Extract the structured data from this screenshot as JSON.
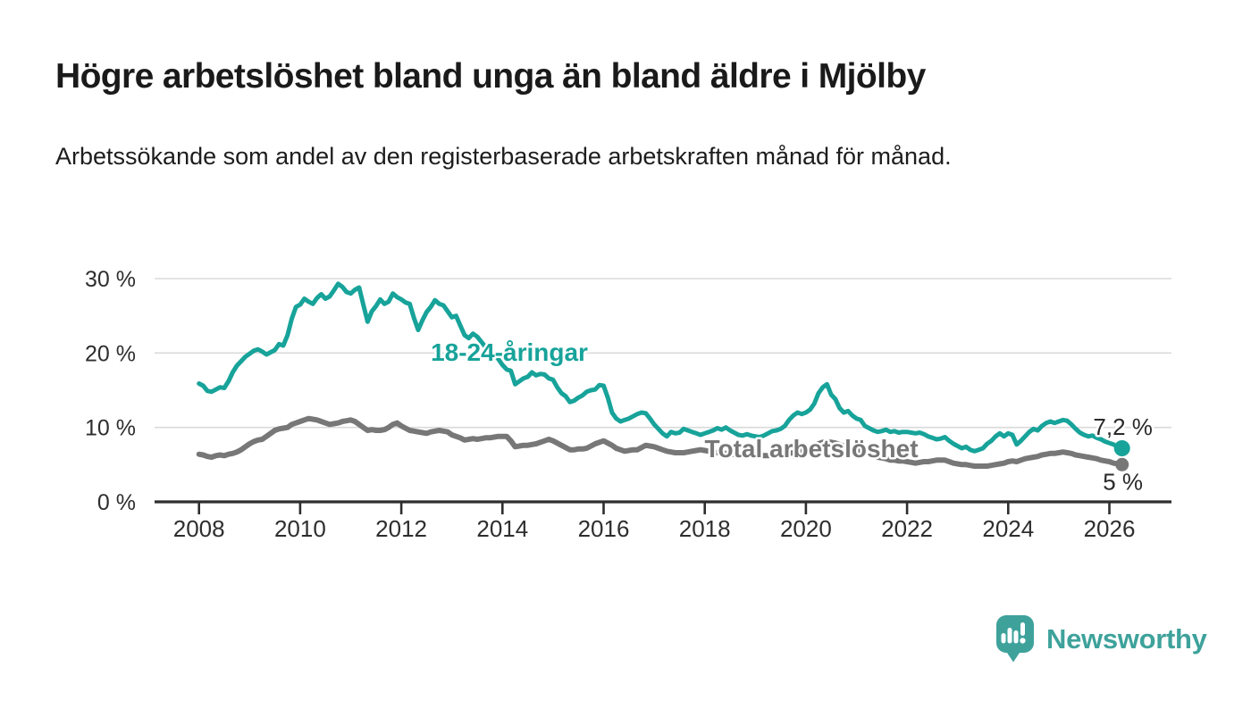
{
  "header": {
    "title": "Högre arbetslöshet bland unga än bland äldre i Mjölby",
    "subtitle": "Arbetssökande som andel av den registerbaserade arbetskraften månad för månad."
  },
  "chart_data": {
    "type": "line",
    "unit": "%",
    "grid": true,
    "start": "2008-01",
    "freq": "monthly",
    "ylim": [
      0,
      30
    ],
    "y_axis": {
      "tick_values": [
        0,
        10,
        20,
        30
      ],
      "tick_labels": [
        "0 %",
        "10 %",
        "20 %",
        "30 %"
      ]
    },
    "x_axis": {
      "tick_years": [
        2008,
        2010,
        2012,
        2014,
        2016,
        2018,
        2020,
        2022,
        2024,
        2026
      ],
      "tick_labels": [
        "2008",
        "2010",
        "2012",
        "2014",
        "2016",
        "2018",
        "2020",
        "2022",
        "2024",
        "2026"
      ]
    },
    "series": [
      {
        "name": "18-24-åringar",
        "color": "#17a39a",
        "line_width": 5,
        "end_label": "7,2 %",
        "end_value": 7.2,
        "values": [
          15.9,
          15.6,
          14.9,
          14.8,
          15.1,
          15.4,
          15.3,
          16.2,
          17.4,
          18.3,
          18.9,
          19.5,
          19.9,
          20.3,
          20.5,
          20.2,
          19.8,
          20.1,
          20.4,
          21.2,
          21.0,
          22.4,
          24.6,
          26.2,
          26.5,
          27.3,
          26.9,
          26.6,
          27.4,
          27.9,
          27.3,
          27.6,
          28.4,
          29.3,
          28.9,
          28.2,
          28.0,
          28.5,
          28.8,
          26.5,
          24.2,
          25.6,
          26.3,
          27.2,
          26.6,
          26.9,
          28.0,
          27.5,
          27.2,
          26.8,
          26.6,
          24.7,
          23.1,
          24.4,
          25.5,
          26.2,
          27.1,
          26.6,
          26.4,
          25.6,
          24.8,
          25.0,
          23.7,
          22.4,
          22.0,
          22.6,
          22.2,
          21.5,
          20.8,
          20.3,
          19.8,
          19.2,
          18.4,
          17.8,
          17.6,
          15.8,
          16.2,
          16.6,
          16.8,
          17.4,
          17.0,
          17.2,
          17.1,
          16.6,
          16.4,
          15.4,
          14.6,
          14.2,
          13.4,
          13.6,
          14.0,
          14.3,
          14.8,
          15.0,
          15.1,
          15.7,
          15.6,
          14.0,
          12.0,
          11.2,
          10.8,
          11.0,
          11.2,
          11.5,
          11.8,
          12.0,
          11.9,
          11.2,
          10.4,
          9.8,
          9.2,
          8.8,
          9.4,
          9.2,
          9.3,
          9.8,
          9.6,
          9.4,
          9.2,
          9.0,
          9.2,
          9.4,
          9.6,
          9.9,
          9.7,
          10.0,
          9.6,
          9.3,
          9.0,
          8.9,
          9.1,
          8.9,
          8.8,
          8.7,
          8.9,
          9.2,
          9.5,
          9.6,
          9.8,
          10.2,
          11.0,
          11.6,
          12.0,
          11.8,
          12.0,
          12.4,
          13.2,
          14.6,
          15.4,
          15.8,
          14.4,
          13.8,
          12.6,
          12.0,
          12.2,
          11.6,
          11.2,
          11.0,
          10.2,
          9.9,
          9.6,
          9.4,
          9.5,
          9.7,
          9.4,
          9.5,
          9.3,
          9.4,
          9.4,
          9.3,
          9.2,
          9.3,
          9.1,
          8.8,
          8.6,
          8.4,
          8.5,
          8.7,
          8.2,
          7.8,
          7.5,
          7.2,
          7.4,
          7.0,
          6.8,
          7.0,
          7.2,
          7.8,
          8.2,
          8.8,
          9.2,
          8.8,
          9.2,
          9.0,
          7.7,
          8.2,
          8.8,
          9.4,
          9.8,
          9.6,
          10.2,
          10.6,
          10.8,
          10.6,
          10.8,
          11.0,
          10.9,
          10.4,
          9.8,
          9.3,
          9.0,
          8.8,
          8.9,
          8.6,
          8.4,
          8.1,
          7.9,
          7.7,
          7.4,
          7.2
        ]
      },
      {
        "name": "Total arbetslöshet",
        "color": "#777777",
        "line_width": 6,
        "end_label": "5 %",
        "end_value": 5.0,
        "values": [
          6.4,
          6.3,
          6.1,
          6.0,
          6.2,
          6.3,
          6.2,
          6.4,
          6.5,
          6.7,
          7.0,
          7.4,
          7.8,
          8.1,
          8.3,
          8.4,
          8.8,
          9.2,
          9.6,
          9.8,
          9.9,
          10.0,
          10.4,
          10.6,
          10.8,
          11.0,
          11.2,
          11.1,
          11.0,
          10.8,
          10.6,
          10.4,
          10.5,
          10.6,
          10.8,
          10.9,
          11.0,
          10.8,
          10.4,
          10.0,
          9.6,
          9.7,
          9.6,
          9.6,
          9.7,
          10.0,
          10.4,
          10.6,
          10.2,
          9.9,
          9.6,
          9.5,
          9.4,
          9.3,
          9.2,
          9.4,
          9.5,
          9.6,
          9.5,
          9.4,
          9.0,
          8.8,
          8.6,
          8.3,
          8.4,
          8.5,
          8.4,
          8.5,
          8.6,
          8.6,
          8.7,
          8.8,
          8.8,
          8.8,
          8.2,
          7.4,
          7.5,
          7.6,
          7.6,
          7.7,
          7.8,
          8.0,
          8.2,
          8.4,
          8.2,
          7.9,
          7.6,
          7.3,
          7.0,
          7.0,
          7.1,
          7.1,
          7.2,
          7.5,
          7.8,
          8.0,
          8.2,
          7.9,
          7.6,
          7.2,
          7.0,
          6.8,
          6.9,
          7.0,
          7.0,
          7.3,
          7.6,
          7.5,
          7.4,
          7.2,
          7.0,
          6.8,
          6.7,
          6.6,
          6.6,
          6.6,
          6.7,
          6.8,
          6.9,
          7.0,
          6.9,
          6.8,
          6.7,
          6.6,
          6.6,
          6.5,
          6.4,
          6.4,
          6.3,
          6.3,
          6.4,
          6.4,
          6.3,
          6.3,
          6.2,
          6.2,
          6.3,
          6.3,
          6.4,
          6.4,
          6.5,
          6.6,
          6.7,
          6.8,
          6.9,
          7.0,
          7.4,
          7.8,
          8.0,
          8.1,
          8.0,
          7.9,
          7.7,
          7.5,
          7.3,
          7.2,
          7.0,
          6.8,
          6.6,
          6.4,
          6.2,
          6.0,
          5.9,
          5.8,
          5.6,
          5.6,
          5.5,
          5.5,
          5.4,
          5.3,
          5.2,
          5.3,
          5.4,
          5.4,
          5.5,
          5.6,
          5.6,
          5.6,
          5.4,
          5.2,
          5.1,
          5.0,
          5.0,
          4.9,
          4.8,
          4.8,
          4.8,
          4.8,
          4.9,
          5.0,
          5.1,
          5.2,
          5.4,
          5.5,
          5.4,
          5.6,
          5.8,
          5.9,
          6.0,
          6.1,
          6.3,
          6.4,
          6.5,
          6.5,
          6.6,
          6.7,
          6.6,
          6.5,
          6.3,
          6.2,
          6.1,
          6.0,
          5.9,
          5.8,
          5.6,
          5.5,
          5.4,
          5.2,
          5.1,
          5.0
        ]
      }
    ],
    "title": "Högre arbetslöshet bland unga än bland äldre i Mjölby",
    "xlabel": "",
    "ylabel": ""
  },
  "footer": {
    "brand": "Newsworthy",
    "brand_color": "#3ea29b",
    "logo_icon": "bar-chart-speech-bubble"
  },
  "colors": {
    "accent_teal": "#17a39a",
    "series_gray": "#777777",
    "axis": "#2e2e2e",
    "grid": "#dadada",
    "end_label_text": "#2a2a2a"
  }
}
